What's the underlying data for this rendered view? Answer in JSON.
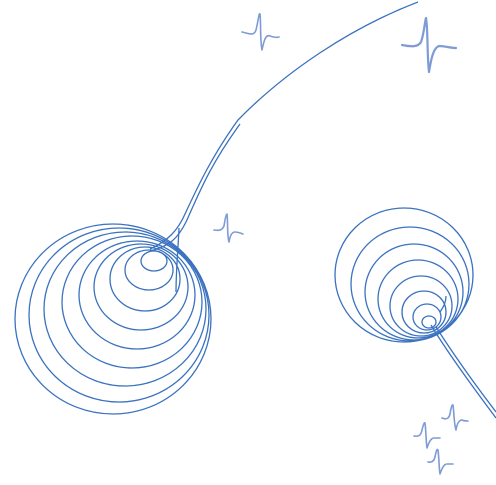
{
  "colors": {
    "background": "#ffffff",
    "spiral_stroke": "#3a72bf",
    "squiggle_stroke": "#7e9bd6"
  },
  "scene": {
    "spiral_count": 2,
    "squiggle_count": 6
  }
}
